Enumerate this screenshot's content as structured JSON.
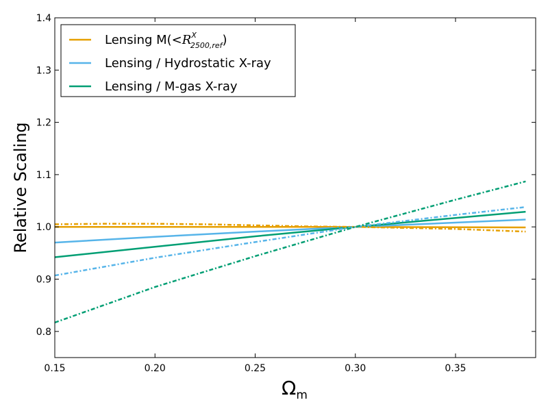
{
  "chart_data": {
    "type": "line",
    "xlabel": "Ωm",
    "ylabel": "Relative Scaling",
    "xlim": [
      0.15,
      0.39
    ],
    "ylim": [
      0.75,
      1.4
    ],
    "xticks": [
      0.15,
      0.2,
      0.25,
      0.3,
      0.35
    ],
    "xtick_labels": [
      "0.15",
      "0.20",
      "0.25",
      "0.30",
      "0.35"
    ],
    "yticks": [
      0.8,
      0.9,
      1.0,
      1.1,
      1.2,
      1.3,
      1.4
    ],
    "ytick_labels": [
      "0.8",
      "0.9",
      "1.0",
      "1.1",
      "1.2",
      "1.3",
      "1.4"
    ],
    "grid": false,
    "legend_position": "top-left",
    "colors": {
      "lensing_mass": "#E69F00",
      "hydrostatic": "#56B4E9",
      "mgas": "#009E73"
    },
    "legend": [
      {
        "label_main": "Lensing M(<",
        "label_sym": "R",
        "label_sup": "X",
        "label_sub": "2500,ref",
        "label_close": ")",
        "color": "#E69F00"
      },
      {
        "label_main": "Lensing / Hydrostatic X-ray",
        "color": "#56B4E9"
      },
      {
        "label_main": "Lensing / M-gas X-ray",
        "color": "#009E73"
      }
    ],
    "series": [
      {
        "name": "Lensing M(<R^X_2500,ref)",
        "style": "solid",
        "color": "#E69F00",
        "x": [
          0.15,
          0.2,
          0.25,
          0.3,
          0.385
        ],
        "y": [
          1.0,
          1.0,
          1.0,
          1.0,
          0.999
        ]
      },
      {
        "name": "Lensing / Hydrostatic X-ray",
        "style": "solid",
        "color": "#56B4E9",
        "x": [
          0.15,
          0.2,
          0.25,
          0.3,
          0.385
        ],
        "y": [
          0.97,
          0.981,
          0.991,
          1.0,
          1.014
        ]
      },
      {
        "name": "Lensing / M-gas X-ray",
        "style": "solid",
        "color": "#009E73",
        "x": [
          0.15,
          0.2,
          0.25,
          0.3,
          0.385
        ],
        "y": [
          0.942,
          0.962,
          0.982,
          1.0,
          1.029
        ]
      },
      {
        "name": "Lensing M(<R^X_2500,ref)",
        "style": "dashdot",
        "color": "#E69F00",
        "x": [
          0.15,
          0.175,
          0.2,
          0.225,
          0.25,
          0.275,
          0.3,
          0.325,
          0.35,
          0.385
        ],
        "y": [
          1.005,
          1.006,
          1.006,
          1.005,
          1.003,
          1.001,
          1.0,
          0.998,
          0.996,
          0.991
        ]
      },
      {
        "name": "Lensing / Hydrostatic X-ray",
        "style": "dashdot",
        "color": "#56B4E9",
        "x": [
          0.15,
          0.2,
          0.25,
          0.3,
          0.35,
          0.385
        ],
        "y": [
          0.907,
          0.941,
          0.971,
          1.0,
          1.023,
          1.038
        ]
      },
      {
        "name": "Lensing / M-gas X-ray",
        "style": "dashdot",
        "color": "#009E73",
        "x": [
          0.15,
          0.2,
          0.25,
          0.3,
          0.35,
          0.385
        ],
        "y": [
          0.817,
          0.885,
          0.944,
          1.0,
          1.052,
          1.087
        ]
      }
    ]
  }
}
